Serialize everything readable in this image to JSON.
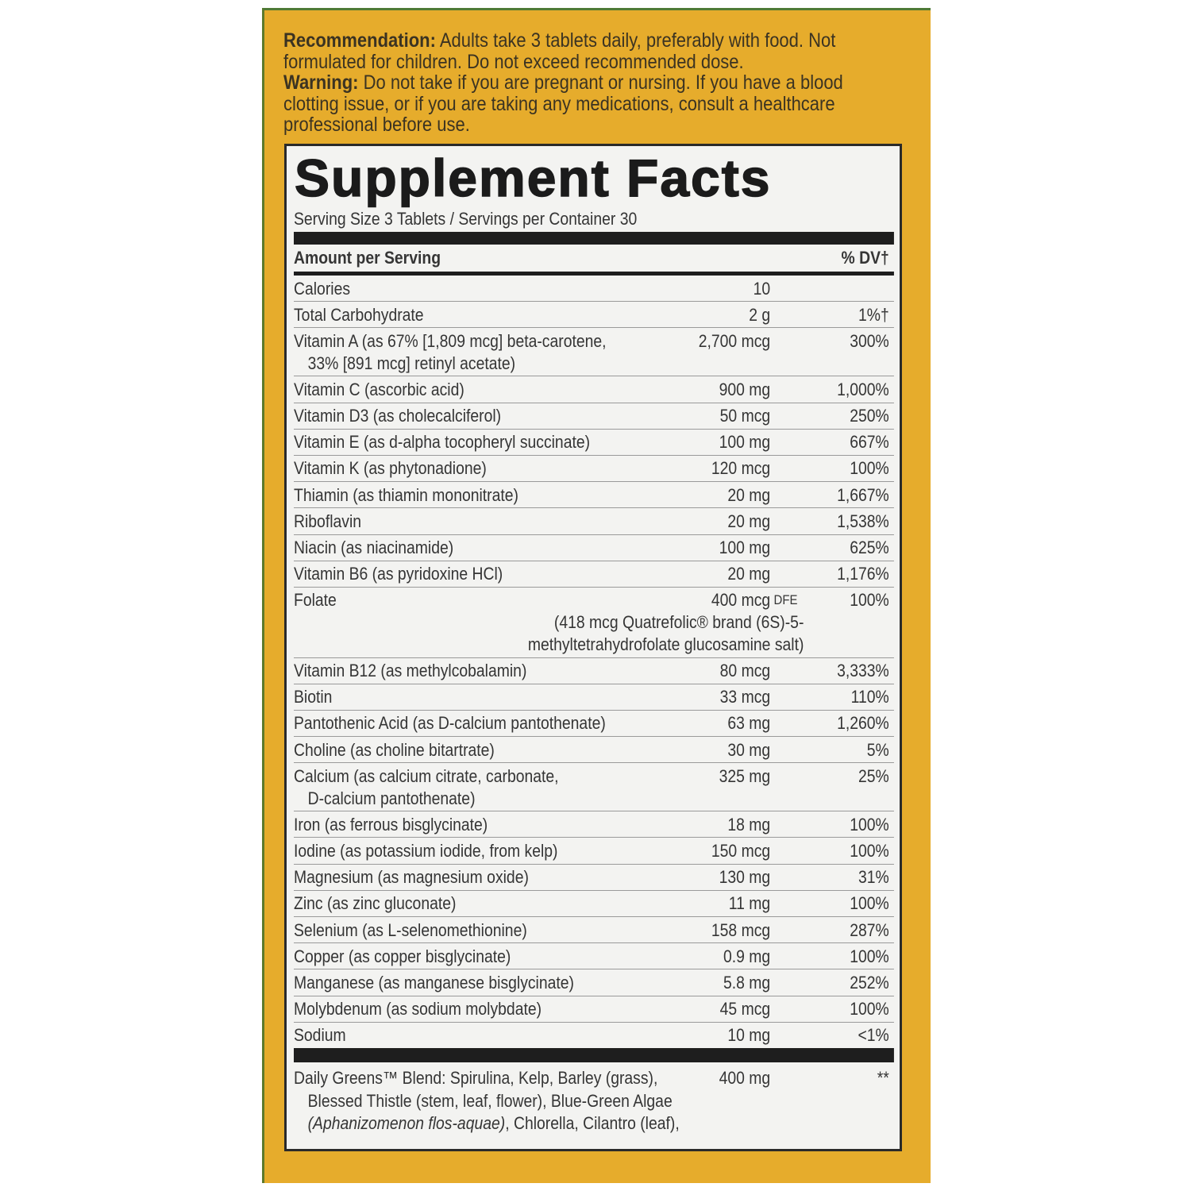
{
  "label": {
    "recommendation": {
      "label": "Recommendation:",
      "text": "Adults take 3 tablets daily, preferably with food. Not formulated for children. Do not exceed recommended dose."
    },
    "warning": {
      "label": "Warning:",
      "text": "Do not take if you are pregnant or nursing. If you have a blood clotting issue, or if you are taking any medications, consult a healthcare professional before use."
    },
    "facts": {
      "title": "Supplement Facts",
      "serving": "Serving Size 3 Tablets / Servings per Container 30",
      "header_amount": "Amount per Serving",
      "header_dv": "% DV†",
      "rows": [
        {
          "name": "Calories",
          "amount": "10"
        },
        {
          "name": "Total Carbohydrate",
          "amount": "2 g",
          "dv": "1%†"
        },
        {
          "name": "Vitamin A (as 67% [1,809 mcg] beta-carotene,",
          "cont": "33% [891 mcg] retinyl acetate)",
          "amount": "2,700 mcg",
          "dv": "300%"
        },
        {
          "name": "Vitamin C (ascorbic acid)",
          "amount": "900 mg",
          "dv": "1,000%"
        },
        {
          "name": "Vitamin D3 (as cholecalciferol)",
          "amount": "50 mcg",
          "dv": "250%"
        },
        {
          "name": "Vitamin E (as d-alpha tocopheryl succinate)",
          "amount": "100 mg",
          "dv": "667%"
        },
        {
          "name": "Vitamin K (as phytonadione)",
          "amount": "120 mcg",
          "dv": "100%"
        },
        {
          "name": "Thiamin (as thiamin mononitrate)",
          "amount": "20 mg",
          "dv": "1,667%"
        },
        {
          "name": "Riboflavin",
          "amount": "20 mg",
          "dv": "1,538%"
        },
        {
          "name": "Niacin (as niacinamide)",
          "amount": "100 mg",
          "dv": "625%"
        },
        {
          "name": "Vitamin B6 (as pyridoxine HCl)",
          "amount": "20 mg",
          "dv": "1,176%"
        },
        {
          "name": "Folate",
          "amount": "400 mcg",
          "unit": "DFE",
          "note": [
            "(418 mcg Quatrefolic® brand (6S)-5-",
            "methyltetrahydrofolate glucosamine salt)"
          ],
          "dv": "100%"
        },
        {
          "name": "Vitamin B12 (as methylcobalamin)",
          "amount": "80 mcg",
          "dv": "3,333%"
        },
        {
          "name": "Biotin",
          "amount": "33 mcg",
          "dv": "110%"
        },
        {
          "name": "Pantothenic Acid (as D-calcium pantothenate)",
          "amount": "63 mg",
          "dv": "1,260%"
        },
        {
          "name": "Choline (as choline bitartrate)",
          "amount": "30 mg",
          "dv": "5%"
        },
        {
          "name": "Calcium (as calcium citrate, carbonate,",
          "cont": "D-calcium pantothenate)",
          "amount": "325 mg",
          "dv": "25%"
        },
        {
          "name": "Iron (as ferrous bisglycinate)",
          "amount": "18 mg",
          "dv": "100%"
        },
        {
          "name": "Iodine (as potassium iodide, from kelp)",
          "amount": "150 mcg",
          "dv": "100%"
        },
        {
          "name": "Magnesium (as magnesium oxide)",
          "amount": "130 mg",
          "dv": "31%"
        },
        {
          "name": "Zinc (as zinc gluconate)",
          "amount": "11 mg",
          "dv": "100%"
        },
        {
          "name": "Selenium (as L-selenomethionine)",
          "amount": "158 mcg",
          "dv": "287%"
        },
        {
          "name": "Copper (as copper bisglycinate)",
          "amount": "0.9 mg",
          "dv": "100%"
        },
        {
          "name": "Manganese (as manganese bisglycinate)",
          "amount": "5.8 mg",
          "dv": "252%"
        },
        {
          "name": "Molybdenum (as sodium molybdate)",
          "amount": "45 mcg",
          "dv": "100%"
        },
        {
          "name": "Sodium",
          "amount": "10 mg",
          "dv": "<1%"
        }
      ],
      "blend": {
        "lines": [
          "Daily Greens™ Blend: Spirulina, Kelp, Barley (grass),",
          "Blessed Thistle (stem, leaf, flower), Blue-Green Algae"
        ],
        "italic": "(Aphanizomenon flos-aquae)",
        "rest": ", Chlorella, Cilantro (leaf),",
        "amount": "400 mg",
        "dv": "**"
      }
    }
  }
}
